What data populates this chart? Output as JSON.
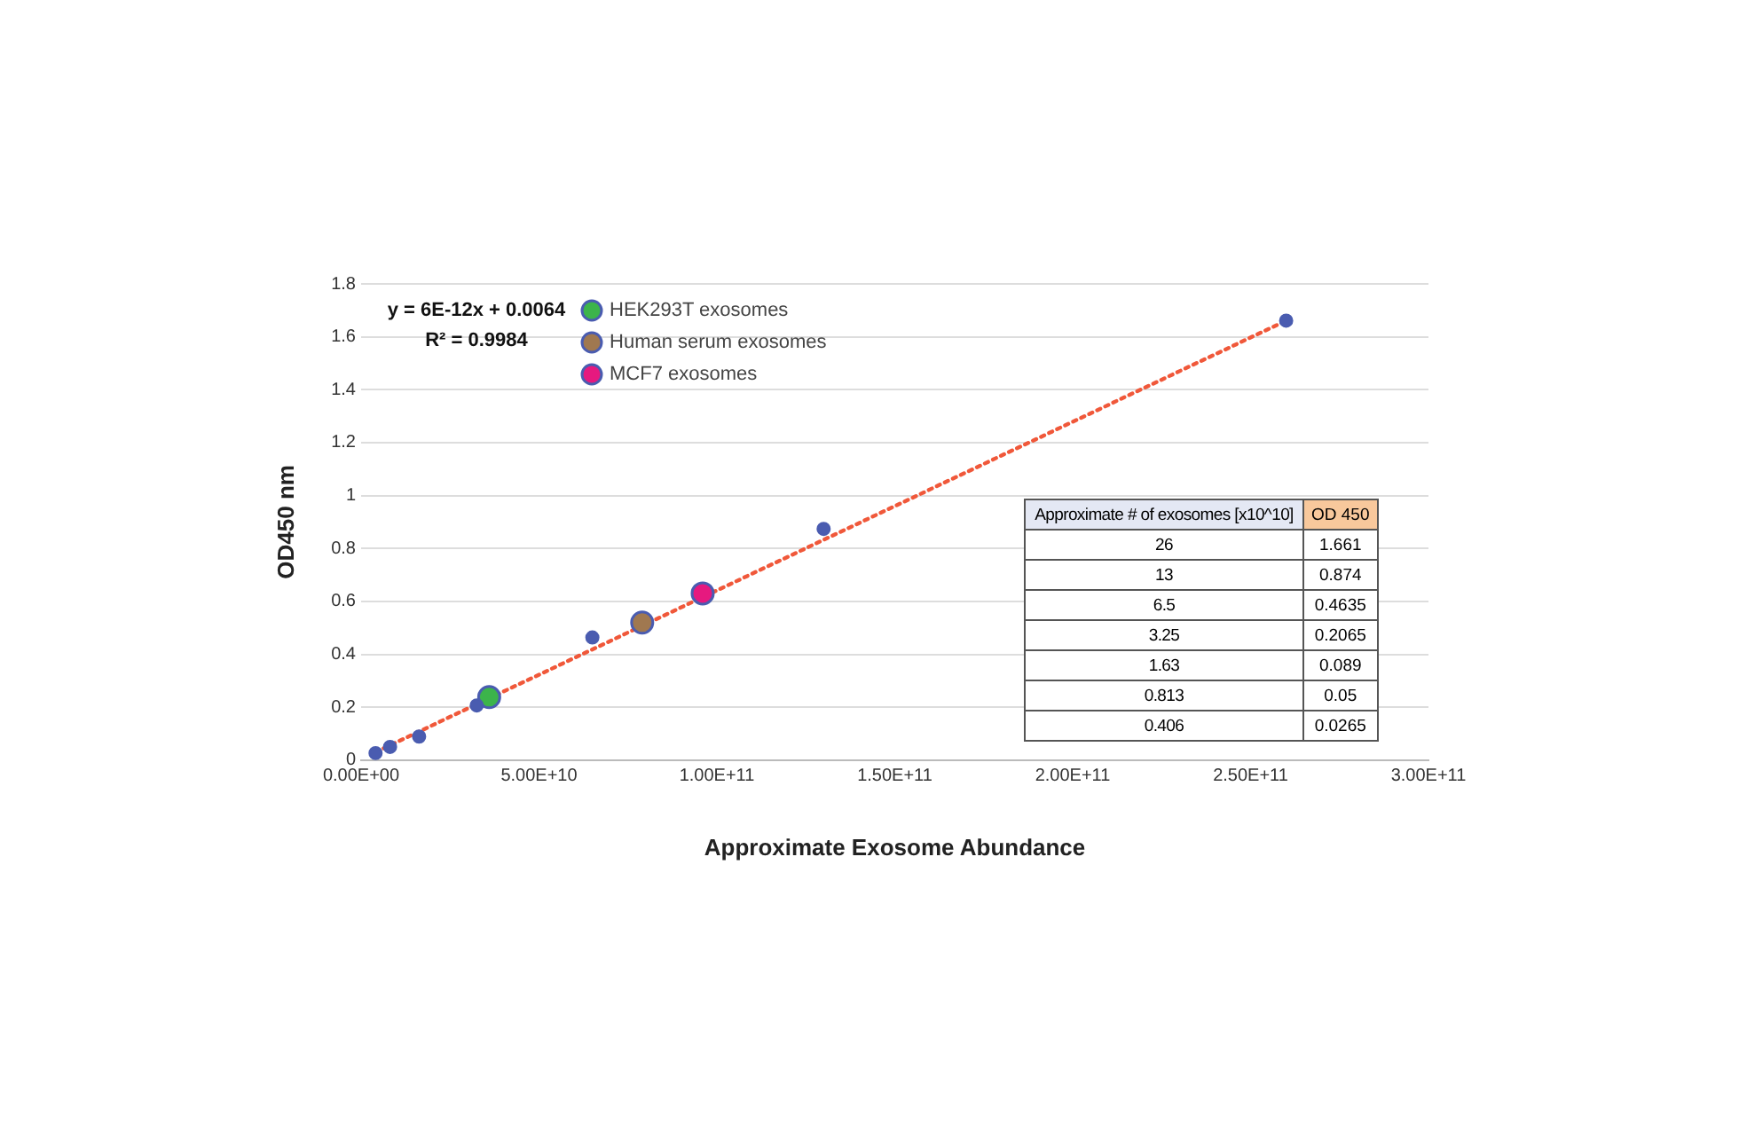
{
  "chart_data": {
    "type": "scatter",
    "xlabel": "Approximate Exosome Abundance",
    "ylabel": "OD450 nm",
    "xlim": [
      0,
      300000000000
    ],
    "xticks": [
      {
        "value": 0,
        "label": "0.00E+00"
      },
      {
        "value": 50000000000,
        "label": "5.00E+10"
      },
      {
        "value": 100000000000,
        "label": "1.00E+11"
      },
      {
        "value": 150000000000,
        "label": "1.50E+11"
      },
      {
        "value": 200000000000,
        "label": "2.00E+11"
      },
      {
        "value": 250000000000,
        "label": "2.50E+11"
      },
      {
        "value": 300000000000,
        "label": "3.00E+11"
      }
    ],
    "ylim": [
      0,
      1.8
    ],
    "yticks": [
      0,
      0.2,
      0.4,
      0.6,
      0.8,
      1,
      1.2,
      1.4,
      1.6,
      1.8
    ],
    "grid": "y",
    "legend": "top left",
    "marker": "circle",
    "annotations": [
      "y = 6E-12x + 0.0064",
      "R² = 0.9984",
      "Approximate # of exosomes [x10^10]",
      "OD 450",
      "26",
      "1.661",
      "13",
      "0.874",
      "6.5",
      "0.4635",
      "3.25",
      "0.2065",
      "1.63",
      "0.089",
      "0.813",
      "0.05",
      "0.406",
      "0.0265"
    ],
    "series": [
      {
        "color": "#4a5cb0",
        "x": [
          260000000000,
          130000000000,
          65000000000,
          32500000000,
          16300000000,
          8130000000,
          4060000000
        ],
        "values": [
          1.661,
          0.874,
          0.4635,
          0.2065,
          0.089,
          0.05,
          0.0265
        ]
      },
      {
        "name": "HEK293T exosomes",
        "color": "#3cb44b",
        "x": [
          36000000000
        ],
        "values": [
          0.238
        ]
      },
      {
        "name": "Human serum exosomes",
        "color": "#a07850",
        "x": [
          79000000000
        ],
        "values": [
          0.52
        ]
      },
      {
        "name": "MCF7 exosomes",
        "color": "#e6197f",
        "x": [
          96000000000
        ],
        "values": [
          0.63
        ]
      },
      {
        "type": "line",
        "marker": "none",
        "color": "#f0583a",
        "line_style": "dotted",
        "x": [
          4060000000,
          260000000000
        ],
        "values": [
          0.03,
          1.661
        ]
      }
    ]
  }
}
